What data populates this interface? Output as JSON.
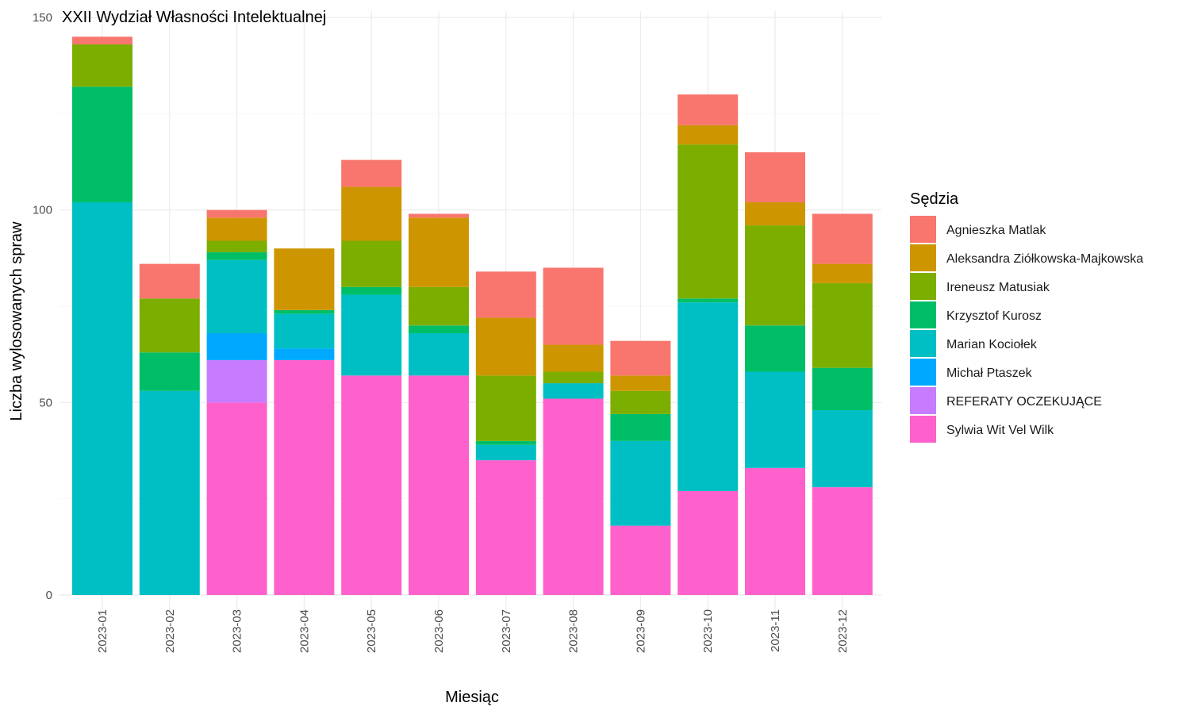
{
  "chart_data": {
    "type": "bar",
    "stacked": true,
    "title": "XXII Wydział Własności Intelektualnej",
    "xlabel": "Miesiąc",
    "ylabel": "Liczba wylosowanych spraw",
    "ylim": [
      0,
      150
    ],
    "yticks": [
      0,
      50,
      100,
      150
    ],
    "grid": true,
    "legend_title": "Sędzia",
    "legend_position": "right",
    "categories": [
      "2023-01",
      "2023-02",
      "2023-03",
      "2023-04",
      "2023-05",
      "2023-06",
      "2023-07",
      "2023-08",
      "2023-09",
      "2023-10",
      "2023-11",
      "2023-12"
    ],
    "series": [
      {
        "name": "Sylwia Wit Vel Wilk",
        "color": "#FF61CC",
        "values": [
          0,
          0,
          50,
          61,
          57,
          57,
          35,
          51,
          18,
          27,
          33,
          28
        ]
      },
      {
        "name": "REFERATY OCZEKUJĄCE",
        "color": "#C77CFF",
        "values": [
          0,
          0,
          11,
          0,
          0,
          0,
          0,
          0,
          0,
          0,
          0,
          0
        ]
      },
      {
        "name": "Michał Ptaszek",
        "color": "#00A9FF",
        "values": [
          0,
          0,
          7,
          3,
          0,
          0,
          0,
          0,
          0,
          0,
          0,
          0
        ]
      },
      {
        "name": "Marian Kociołek",
        "color": "#00BFC4",
        "values": [
          102,
          53,
          19,
          9,
          21,
          11,
          4,
          4,
          22,
          49,
          25,
          20
        ]
      },
      {
        "name": "Krzysztof Kurosz",
        "color": "#00BE67",
        "values": [
          30,
          10,
          2,
          1,
          2,
          2,
          1,
          0,
          7,
          1,
          12,
          11
        ]
      },
      {
        "name": "Ireneusz Matusiak",
        "color": "#7CAE00",
        "values": [
          11,
          14,
          3,
          0,
          12,
          10,
          17,
          3,
          6,
          40,
          26,
          22
        ]
      },
      {
        "name": "Aleksandra Ziółkowska-Majkowska",
        "color": "#CD9600",
        "values": [
          0,
          0,
          6,
          16,
          14,
          18,
          15,
          7,
          4,
          5,
          6,
          5
        ]
      },
      {
        "name": "Agnieszka Matlak",
        "color": "#F8766D",
        "values": [
          2,
          9,
          2,
          0,
          7,
          1,
          12,
          20,
          9,
          8,
          13,
          13
        ]
      }
    ],
    "legend_order": [
      "Agnieszka Matlak",
      "Aleksandra Ziółkowska-Majkowska",
      "Ireneusz Matusiak",
      "Krzysztof Kurosz",
      "Marian Kociołek",
      "Michał Ptaszek",
      "REFERATY OCZEKUJĄCE",
      "Sylwia Wit Vel Wilk"
    ]
  }
}
